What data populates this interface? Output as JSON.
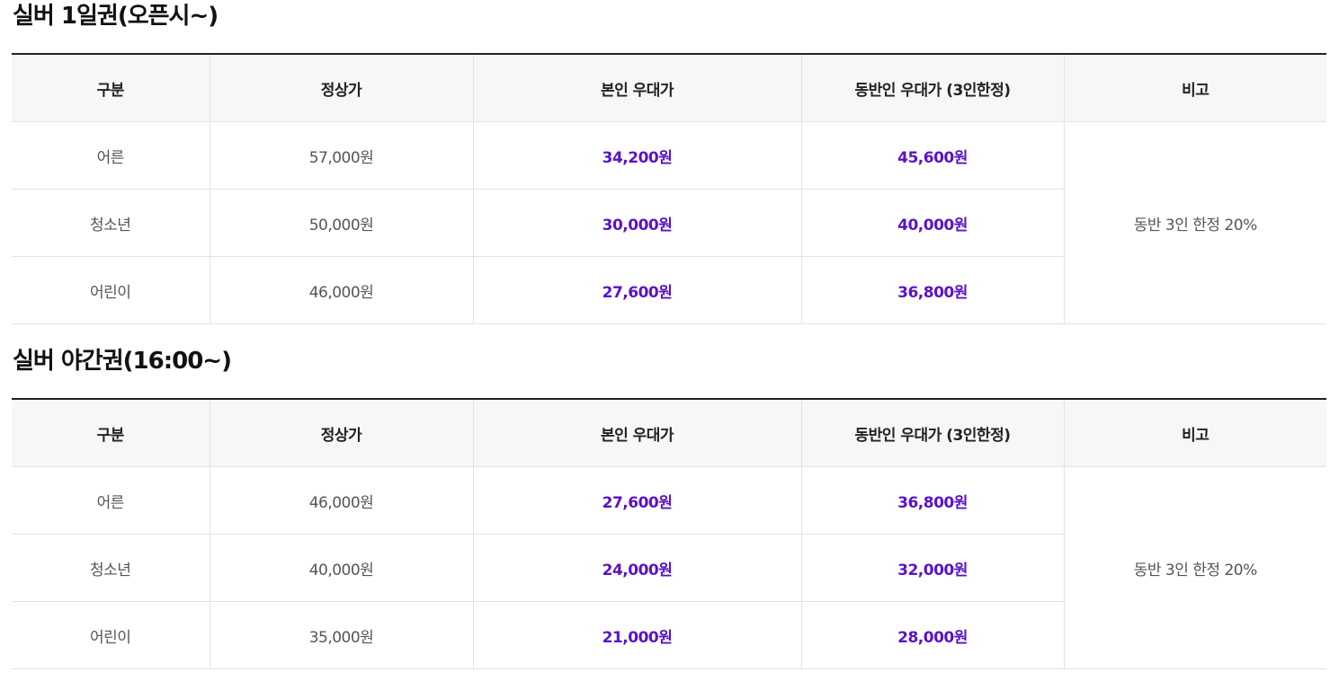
{
  "colors": {
    "accent_price": "#5a12c8",
    "header_bg": "#f7f7f7",
    "table_top_border": "#222222",
    "cell_border": "#e2e2e2"
  },
  "sections": [
    {
      "title": "실버 1일권(오픈시~)",
      "headers": [
        "구분",
        "정상가",
        "본인 우대가",
        "동반인 우대가 (3인한정)",
        "비고"
      ],
      "rows": [
        {
          "category": "어른",
          "regular": "57,000원",
          "self": "34,200원",
          "companion": "45,600원"
        },
        {
          "category": "청소년",
          "regular": "50,000원",
          "self": "30,000원",
          "companion": "40,000원"
        },
        {
          "category": "어린이",
          "regular": "46,000원",
          "self": "27,600원",
          "companion": "36,800원"
        }
      ],
      "note": "동반 3인 한정 20%"
    },
    {
      "title": "실버 야간권(16:00~)",
      "headers": [
        "구분",
        "정상가",
        "본인 우대가",
        "동반인 우대가 (3인한정)",
        "비고"
      ],
      "rows": [
        {
          "category": "어른",
          "regular": "46,000원",
          "self": "27,600원",
          "companion": "36,800원"
        },
        {
          "category": "청소년",
          "regular": "40,000원",
          "self": "24,000원",
          "companion": "32,000원"
        },
        {
          "category": "어린이",
          "regular": "35,000원",
          "self": "21,000원",
          "companion": "28,000원"
        }
      ],
      "note": "동반 3인 한정 20%"
    }
  ]
}
